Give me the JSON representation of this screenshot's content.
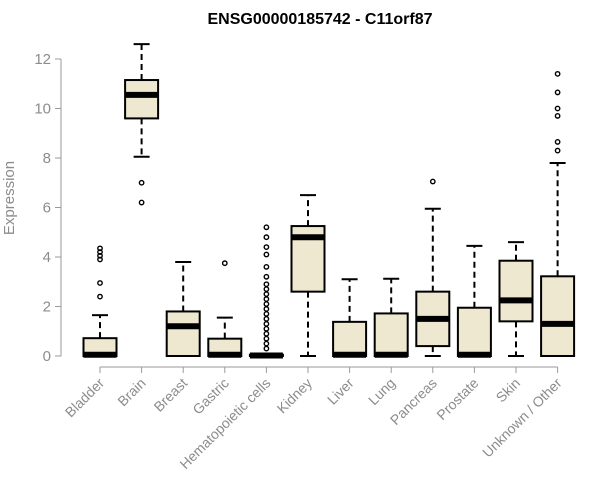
{
  "chart_data": {
    "type": "box",
    "title": "ENSG00000185742 - C11orf87",
    "xlabel": "",
    "ylabel": "Expression",
    "ylim": [
      0,
      12
    ],
    "yticks": [
      0,
      2,
      4,
      6,
      8,
      10,
      12
    ],
    "box_fill": "#efe8d0",
    "categories": [
      "Bladder",
      "Brain",
      "Breast",
      "Gastric",
      "Hematopoietic cells",
      "Kidney",
      "Liver",
      "Lung",
      "Pancreas",
      "Prostate",
      "Skin",
      "Unknown / Other"
    ],
    "boxes": [
      {
        "category": "Bladder",
        "min": 0,
        "q1": 0,
        "median": 0.05,
        "q3": 0.72,
        "max": 1.65,
        "outliers": [
          2.4,
          2.95,
          3.9,
          4.05,
          4.2,
          4.35
        ]
      },
      {
        "category": "Brain",
        "min": 8.05,
        "q1": 9.6,
        "median": 10.55,
        "q3": 11.15,
        "max": 12.6,
        "outliers": [
          6.2,
          7.0
        ]
      },
      {
        "category": "Breast",
        "min": 0,
        "q1": 0,
        "median": 1.2,
        "q3": 1.8,
        "max": 3.8,
        "outliers": []
      },
      {
        "category": "Gastric",
        "min": 0,
        "q1": 0,
        "median": 0.05,
        "q3": 0.7,
        "max": 1.55,
        "outliers": [
          3.75
        ]
      },
      {
        "category": "Hematopoietic cells",
        "min": 0,
        "q1": 0,
        "median": 0.02,
        "q3": 0.05,
        "max": 0.1,
        "outliers": [
          0.3,
          0.5,
          0.7,
          0.9,
          1.1,
          1.3,
          1.5,
          1.7,
          1.9,
          2.1,
          2.3,
          2.5,
          2.7,
          2.9,
          3.2,
          3.6,
          4.1,
          4.4,
          4.8,
          5.2
        ]
      },
      {
        "category": "Kidney",
        "min": 0,
        "q1": 2.6,
        "median": 4.8,
        "q3": 5.25,
        "max": 6.5,
        "outliers": []
      },
      {
        "category": "Liver",
        "min": 0,
        "q1": 0,
        "median": 0.05,
        "q3": 1.38,
        "max": 3.1,
        "outliers": []
      },
      {
        "category": "Lung",
        "min": 0,
        "q1": 0,
        "median": 0.05,
        "q3": 1.72,
        "max": 3.12,
        "outliers": []
      },
      {
        "category": "Pancreas",
        "min": 0,
        "q1": 0.4,
        "median": 1.5,
        "q3": 2.6,
        "max": 5.95,
        "outliers": [
          7.05
        ]
      },
      {
        "category": "Prostate",
        "min": 0,
        "q1": 0,
        "median": 0.05,
        "q3": 1.95,
        "max": 4.45,
        "outliers": []
      },
      {
        "category": "Skin",
        "min": 0,
        "q1": 1.4,
        "median": 2.25,
        "q3": 3.85,
        "max": 4.6,
        "outliers": []
      },
      {
        "category": "Unknown / Other",
        "min": 0,
        "q1": 0,
        "median": 1.3,
        "q3": 3.22,
        "max": 7.8,
        "outliers": [
          8.3,
          8.65,
          9.7,
          10.0,
          10.65,
          11.4
        ]
      }
    ]
  }
}
